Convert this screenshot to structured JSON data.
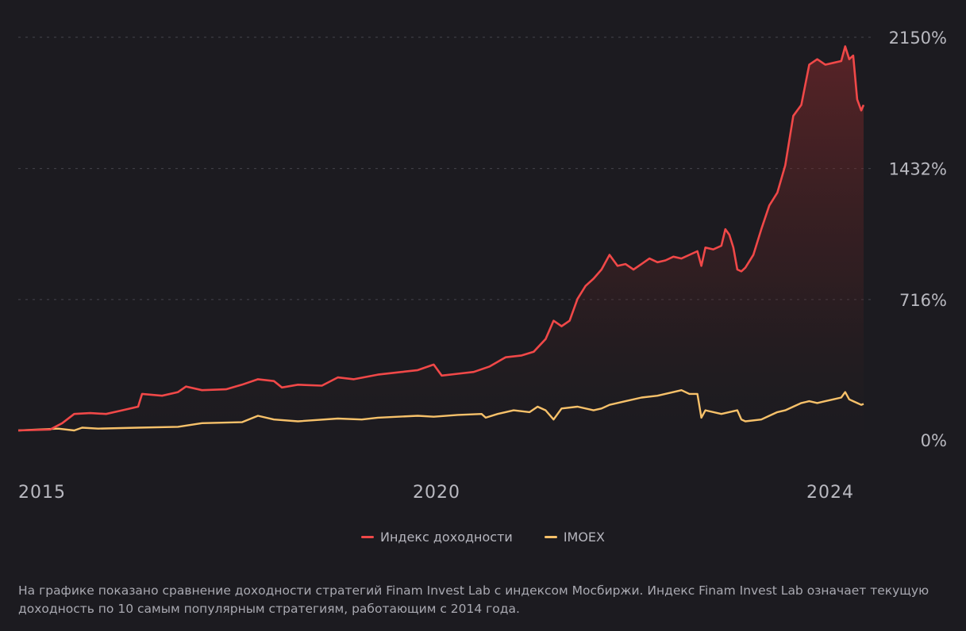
{
  "colors": {
    "background": "#1c1b20",
    "index_line": "#f04848",
    "imoex_line": "#f7c16a",
    "grid": "#44444c",
    "axis_text": "#b9b9c0"
  },
  "chart_data": {
    "type": "line",
    "title": "",
    "x_ticks": [
      "2015",
      "2020",
      "2024"
    ],
    "y_ticks": [
      "2150%",
      "1432%",
      "716%",
      "0%"
    ],
    "ylim": [
      0,
      2150
    ],
    "xlim": [
      2014.0,
      2024.6
    ],
    "series": [
      {
        "name": "Индекс доходности",
        "color": "#f04848",
        "points": [
          [
            2014.0,
            0
          ],
          [
            2014.4,
            5
          ],
          [
            2014.55,
            40
          ],
          [
            2014.7,
            90
          ],
          [
            2014.9,
            95
          ],
          [
            2015.1,
            90
          ],
          [
            2015.3,
            110
          ],
          [
            2015.5,
            130
          ],
          [
            2015.55,
            200
          ],
          [
            2015.8,
            190
          ],
          [
            2016.0,
            210
          ],
          [
            2016.1,
            240
          ],
          [
            2016.3,
            220
          ],
          [
            2016.6,
            225
          ],
          [
            2016.8,
            250
          ],
          [
            2017.0,
            280
          ],
          [
            2017.2,
            270
          ],
          [
            2017.3,
            235
          ],
          [
            2017.5,
            250
          ],
          [
            2017.8,
            245
          ],
          [
            2018.0,
            290
          ],
          [
            2018.2,
            280
          ],
          [
            2018.5,
            305
          ],
          [
            2018.8,
            320
          ],
          [
            2019.0,
            330
          ],
          [
            2019.2,
            360
          ],
          [
            2019.3,
            300
          ],
          [
            2019.5,
            310
          ],
          [
            2019.7,
            320
          ],
          [
            2019.9,
            350
          ],
          [
            2020.1,
            400
          ],
          [
            2020.3,
            410
          ],
          [
            2020.45,
            430
          ],
          [
            2020.6,
            500
          ],
          [
            2020.7,
            600
          ],
          [
            2020.8,
            570
          ],
          [
            2020.9,
            600
          ],
          [
            2021.0,
            720
          ],
          [
            2021.1,
            790
          ],
          [
            2021.2,
            830
          ],
          [
            2021.3,
            880
          ],
          [
            2021.4,
            960
          ],
          [
            2021.5,
            900
          ],
          [
            2021.6,
            910
          ],
          [
            2021.7,
            880
          ],
          [
            2021.8,
            910
          ],
          [
            2021.9,
            940
          ],
          [
            2022.0,
            920
          ],
          [
            2022.1,
            930
          ],
          [
            2022.2,
            950
          ],
          [
            2022.3,
            940
          ],
          [
            2022.4,
            960
          ],
          [
            2022.5,
            980
          ],
          [
            2022.55,
            900
          ],
          [
            2022.6,
            1000
          ],
          [
            2022.7,
            990
          ],
          [
            2022.8,
            1010
          ],
          [
            2022.85,
            1100
          ],
          [
            2022.9,
            1070
          ],
          [
            2022.95,
            1000
          ],
          [
            2023.0,
            880
          ],
          [
            2023.05,
            870
          ],
          [
            2023.1,
            890
          ],
          [
            2023.2,
            960
          ],
          [
            2023.3,
            1100
          ],
          [
            2023.4,
            1230
          ],
          [
            2023.5,
            1300
          ],
          [
            2023.6,
            1450
          ],
          [
            2023.7,
            1720
          ],
          [
            2023.8,
            1780
          ],
          [
            2023.9,
            2000
          ],
          [
            2024.0,
            2030
          ],
          [
            2024.1,
            2000
          ],
          [
            2024.2,
            2010
          ],
          [
            2024.3,
            2020
          ],
          [
            2024.35,
            2100
          ],
          [
            2024.4,
            2030
          ],
          [
            2024.45,
            2050
          ],
          [
            2024.5,
            1810
          ],
          [
            2024.55,
            1750
          ],
          [
            2024.58,
            1780
          ]
        ]
      },
      {
        "name": "IMOEX",
        "color": "#f7c16a",
        "points": [
          [
            2014.0,
            0
          ],
          [
            2014.5,
            10
          ],
          [
            2014.7,
            0
          ],
          [
            2014.8,
            15
          ],
          [
            2015.0,
            10
          ],
          [
            2015.5,
            15
          ],
          [
            2016.0,
            20
          ],
          [
            2016.3,
            40
          ],
          [
            2016.8,
            45
          ],
          [
            2017.0,
            80
          ],
          [
            2017.2,
            60
          ],
          [
            2017.5,
            50
          ],
          [
            2018.0,
            65
          ],
          [
            2018.3,
            60
          ],
          [
            2018.5,
            70
          ],
          [
            2019.0,
            80
          ],
          [
            2019.2,
            75
          ],
          [
            2019.5,
            85
          ],
          [
            2019.8,
            90
          ],
          [
            2019.85,
            70
          ],
          [
            2020.0,
            90
          ],
          [
            2020.2,
            110
          ],
          [
            2020.4,
            100
          ],
          [
            2020.5,
            130
          ],
          [
            2020.6,
            110
          ],
          [
            2020.7,
            60
          ],
          [
            2020.8,
            120
          ],
          [
            2021.0,
            130
          ],
          [
            2021.2,
            110
          ],
          [
            2021.3,
            120
          ],
          [
            2021.4,
            140
          ],
          [
            2021.6,
            160
          ],
          [
            2021.8,
            180
          ],
          [
            2022.0,
            190
          ],
          [
            2022.2,
            210
          ],
          [
            2022.3,
            220
          ],
          [
            2022.4,
            200
          ],
          [
            2022.5,
            200
          ],
          [
            2022.55,
            70
          ],
          [
            2022.6,
            110
          ],
          [
            2022.8,
            90
          ],
          [
            2023.0,
            110
          ],
          [
            2023.05,
            60
          ],
          [
            2023.1,
            50
          ],
          [
            2023.3,
            60
          ],
          [
            2023.4,
            80
          ],
          [
            2023.5,
            100
          ],
          [
            2023.6,
            110
          ],
          [
            2023.7,
            130
          ],
          [
            2023.8,
            150
          ],
          [
            2023.9,
            160
          ],
          [
            2024.0,
            150
          ],
          [
            2024.1,
            160
          ],
          [
            2024.2,
            170
          ],
          [
            2024.3,
            180
          ],
          [
            2024.35,
            210
          ],
          [
            2024.4,
            170
          ],
          [
            2024.45,
            160
          ],
          [
            2024.5,
            150
          ],
          [
            2024.55,
            140
          ],
          [
            2024.58,
            145
          ]
        ]
      }
    ]
  },
  "legend": {
    "index_label": "Индекс доходности",
    "imoex_label": "IMOEX"
  },
  "footnote": "На графике показано сравнение доходности стратегий Finam Invest Lab с индексом Мосбиржи. Индекс Finam Invest Lab означает текущую доходность по 10 самым популярным стратегиям, работающим с 2014 года."
}
